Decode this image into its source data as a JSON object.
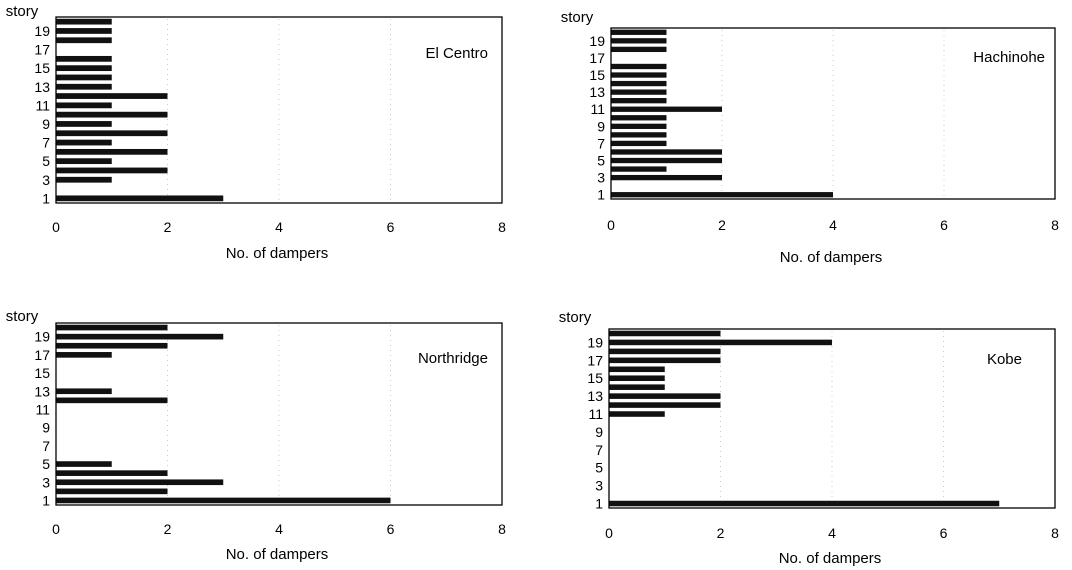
{
  "chart_data": [
    {
      "type": "bar",
      "orientation": "horizontal",
      "title": "El Centro",
      "ylabel": "story",
      "xlabel": "No. of dampers",
      "xlim": [
        0,
        8
      ],
      "x_ticks": [
        "0",
        "2",
        "4",
        "6",
        "8"
      ],
      "y_tick_labels": [
        "1",
        "3",
        "5",
        "7",
        "9",
        "11",
        "13",
        "15",
        "17",
        "19"
      ],
      "categories": [
        "1",
        "2",
        "3",
        "4",
        "5",
        "6",
        "7",
        "8",
        "9",
        "10",
        "11",
        "12",
        "13",
        "14",
        "15",
        "16",
        "17",
        "18",
        "19",
        "20"
      ],
      "values": [
        3,
        0,
        1,
        2,
        1,
        2,
        1,
        2,
        1,
        2,
        1,
        2,
        1,
        1,
        1,
        1,
        0,
        1,
        1,
        1
      ]
    },
    {
      "type": "bar",
      "orientation": "horizontal",
      "title": "Hachinohe",
      "ylabel": "story",
      "xlabel": "No. of dampers",
      "xlim": [
        0,
        8
      ],
      "x_ticks": [
        "0",
        "2",
        "4",
        "6",
        "8"
      ],
      "y_tick_labels": [
        "1",
        "3",
        "5",
        "7",
        "9",
        "11",
        "13",
        "15",
        "17",
        "19"
      ],
      "categories": [
        "1",
        "2",
        "3",
        "4",
        "5",
        "6",
        "7",
        "8",
        "9",
        "10",
        "11",
        "12",
        "13",
        "14",
        "15",
        "16",
        "17",
        "18",
        "19",
        "20"
      ],
      "values": [
        4,
        0,
        2,
        1,
        2,
        2,
        1,
        1,
        1,
        1,
        2,
        1,
        1,
        1,
        1,
        1,
        0,
        1,
        1,
        1
      ]
    },
    {
      "type": "bar",
      "orientation": "horizontal",
      "title": "Northridge",
      "ylabel": "story",
      "xlabel": "No. of dampers",
      "xlim": [
        0,
        8
      ],
      "x_ticks": [
        "0",
        "2",
        "4",
        "6",
        "8"
      ],
      "y_tick_labels": [
        "1",
        "3",
        "5",
        "7",
        "9",
        "11",
        "13",
        "15",
        "17",
        "19"
      ],
      "categories": [
        "1",
        "2",
        "3",
        "4",
        "5",
        "6",
        "7",
        "8",
        "9",
        "10",
        "11",
        "12",
        "13",
        "14",
        "15",
        "16",
        "17",
        "18",
        "19",
        "20"
      ],
      "values": [
        6,
        2,
        3,
        2,
        1,
        0,
        0,
        0,
        0,
        0,
        0,
        2,
        1,
        0,
        0,
        0,
        1,
        2,
        3,
        2
      ]
    },
    {
      "type": "bar",
      "orientation": "horizontal",
      "title": "Kobe",
      "ylabel": "story",
      "xlabel": "No. of dampers",
      "xlim": [
        0,
        8
      ],
      "x_ticks": [
        "0",
        "2",
        "4",
        "6",
        "8"
      ],
      "y_tick_labels": [
        "1",
        "3",
        "5",
        "7",
        "9",
        "11",
        "13",
        "15",
        "17",
        "19"
      ],
      "categories": [
        "1",
        "2",
        "3",
        "4",
        "5",
        "6",
        "7",
        "8",
        "9",
        "10",
        "11",
        "12",
        "13",
        "14",
        "15",
        "16",
        "17",
        "18",
        "19",
        "20"
      ],
      "values": [
        7,
        0,
        0,
        0,
        0,
        0,
        0,
        0,
        0,
        0,
        1,
        2,
        2,
        1,
        1,
        1,
        2,
        2,
        4,
        2
      ]
    }
  ]
}
